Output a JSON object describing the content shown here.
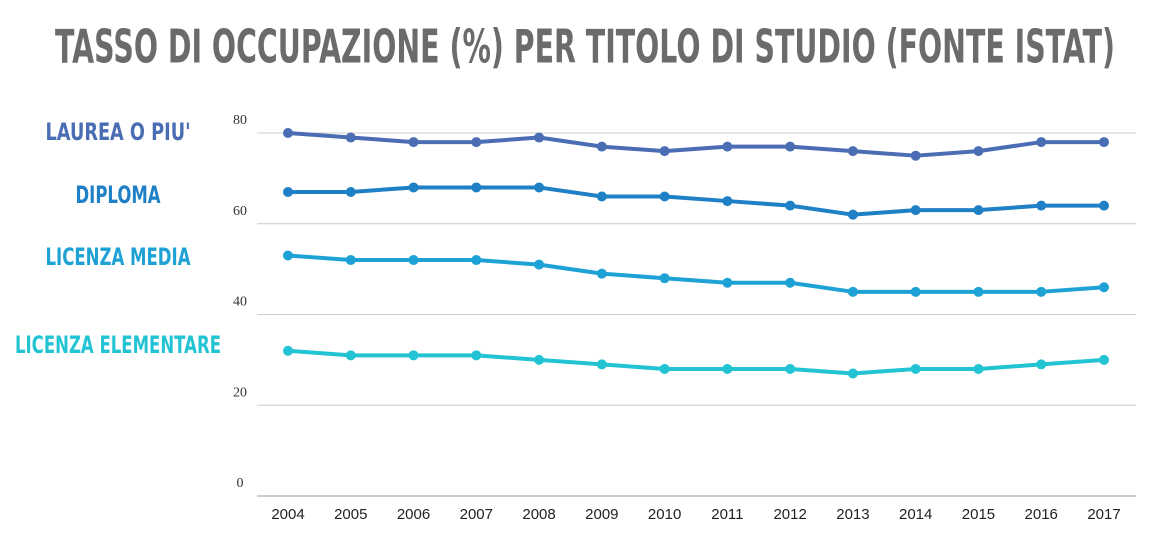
{
  "chart_data": {
    "type": "line",
    "title": "TASSO DI OCCUPAZIONE (%) PER TITOLO DI STUDIO (FONTE ISTAT)",
    "categories": [
      "2004",
      "2005",
      "2006",
      "2007",
      "2008",
      "2009",
      "2010",
      "2011",
      "2012",
      "2013",
      "2014",
      "2015",
      "2016",
      "2017"
    ],
    "series": [
      {
        "name": "LAUREA O PIU'",
        "color": "#4a6db3",
        "values": [
          80,
          79,
          78,
          78,
          79,
          77,
          76,
          77,
          77,
          76,
          75,
          76,
          78,
          78
        ]
      },
      {
        "name": "DIPLOMA",
        "color": "#1f80c6",
        "values": [
          67,
          67,
          68,
          68,
          68,
          66,
          66,
          65,
          64,
          62,
          63,
          63,
          64,
          64
        ]
      },
      {
        "name": "LICENZA MEDIA",
        "color": "#1ea2d6",
        "values": [
          53,
          52,
          52,
          52,
          51,
          49,
          48,
          47,
          47,
          45,
          45,
          45,
          45,
          46
        ]
      },
      {
        "name": "LICENZA ELEMENTARE",
        "color": "#22c3d3",
        "values": [
          32,
          31,
          31,
          31,
          30,
          29,
          28,
          28,
          28,
          27,
          28,
          28,
          29,
          30
        ]
      }
    ],
    "ylim": [
      0,
      80
    ],
    "yticks": [
      0,
      20,
      40,
      60,
      80
    ],
    "grid": true
  }
}
